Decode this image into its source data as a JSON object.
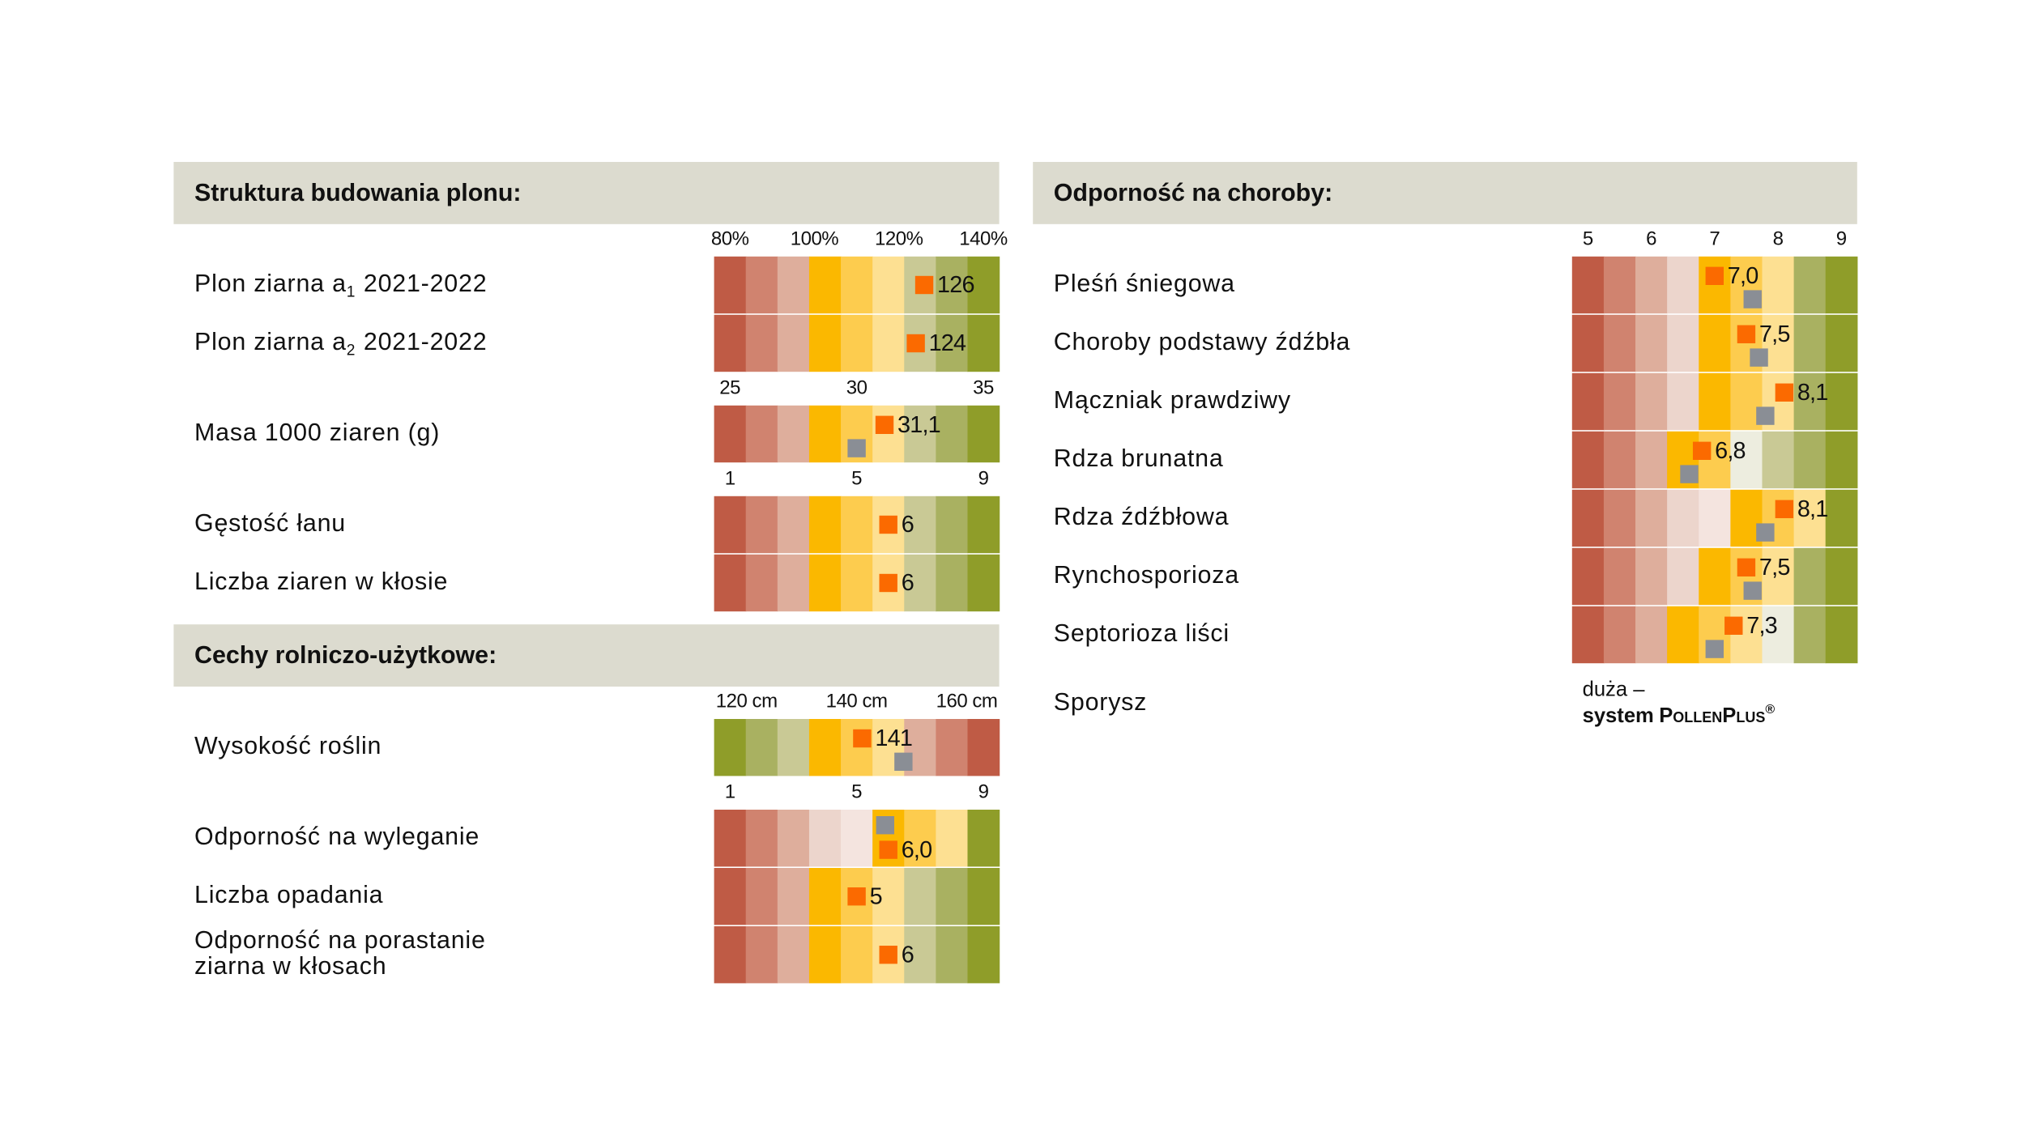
{
  "panels": [
    {
      "sections": [
        {
          "title": "Struktura budowania plonu:",
          "groups": [
            {
              "xlim": [
                76.25,
                143.75
              ],
              "ticks": [
                {
                  "value": 80,
                  "label": "80%"
                },
                {
                  "value": 100,
                  "label": "100%"
                },
                {
                  "value": 120,
                  "label": "120%"
                },
                {
                  "value": 140,
                  "label": "140%"
                }
              ],
              "rows": [
                {
                  "label": "Plon ziarna a",
                  "sub": "1",
                  "label_end": "2021-2022",
                  "value": 126,
                  "colors": [
                    "#bf5b45",
                    "#d0836f",
                    "#deae9c",
                    "#fbb800",
                    "#fdcc4e",
                    "#fde092",
                    "#c9c995",
                    "#a9b161",
                    "#8f9d29"
                  ]
                },
                {
                  "label": "Plon ziarna a",
                  "sub": "2",
                  "label_end": "2021-2022",
                  "value": 124,
                  "colors": [
                    "#bf5b45",
                    "#d0836f",
                    "#deae9c",
                    "#fbb800",
                    "#fdcc4e",
                    "#fde092",
                    "#c9c995",
                    "#a9b161",
                    "#8f9d29"
                  ]
                }
              ]
            },
            {
              "xlim": [
                24.375,
                35.625
              ],
              "ticks": [
                25,
                30,
                35
              ],
              "rows": [
                {
                  "label": "Masa 1000 ziaren (g)",
                  "value": 31.1,
                  "value_label": "31,1",
                  "compare": 30,
                  "colors": [
                    "#bf5b45",
                    "#d0836f",
                    "#deae9c",
                    "#fbb800",
                    "#fdcc4e",
                    "#fde092",
                    "#c9c995",
                    "#a9b161",
                    "#8f9d29"
                  ]
                }
              ]
            },
            {
              "xlim": [
                0.5,
                9.5
              ],
              "ticks": [
                1,
                5,
                9
              ],
              "rows": [
                {
                  "label": "Gęstość łanu",
                  "value": 6,
                  "colors": [
                    "#bf5b45",
                    "#d0836f",
                    "#deae9c",
                    "#fbb800",
                    "#fdcc4e",
                    "#fde092",
                    "#c9c995",
                    "#a9b161",
                    "#8f9d29"
                  ]
                },
                {
                  "label": "Liczba ziaren w kłosie",
                  "value": 6,
                  "colors": [
                    "#bf5b45",
                    "#d0836f",
                    "#deae9c",
                    "#fbb800",
                    "#fdcc4e",
                    "#fde092",
                    "#c9c995",
                    "#a9b161",
                    "#8f9d29"
                  ]
                }
              ]
            }
          ]
        },
        {
          "title": "Cechy rolniczo-użytkowe:",
          "groups": [
            {
              "xlim": [
                114.1,
                165.9
              ],
              "ticks": [
                {
                  "value": 120,
                  "label": "120 cm"
                },
                {
                  "value": 140,
                  "label": "140 cm"
                },
                {
                  "value": 160,
                  "label": "160 cm"
                }
              ],
              "rows": [
                {
                  "label": "Wysokość roślin",
                  "value": 141,
                  "compare": 148.5,
                  "colors": [
                    "#8f9d29",
                    "#a9b161",
                    "#c9c995",
                    "#fbb800",
                    "#fdcc4e",
                    "#fde092",
                    "#deae9c",
                    "#d0836f",
                    "#bf5b45"
                  ]
                }
              ]
            },
            {
              "xlim": [
                0.5,
                9.5
              ],
              "ticks": [
                1,
                5,
                9
              ],
              "rows": [
                {
                  "label": "Odporność na wyleganie",
                  "value": 6,
                  "value_label": "6,0",
                  "compare": 5.9,
                  "compare_above": true,
                  "colors": [
                    "#bf5b45",
                    "#d0836f",
                    "#deae9c",
                    "#ecd5cc",
                    "#f4e4df",
                    "#fbb800",
                    "#fdcc4e",
                    "#fde092",
                    "#8f9d29"
                  ]
                },
                {
                  "label": "Liczba opadania",
                  "value": 5,
                  "colors": [
                    "#bf5b45",
                    "#d0836f",
                    "#deae9c",
                    "#fbb800",
                    "#fdcc4e",
                    "#fde092",
                    "#c9c995",
                    "#a9b161",
                    "#8f9d29"
                  ]
                },
                {
                  "label": [
                    "Odporność na porastanie",
                    "ziarna w kłosach"
                  ],
                  "value": 6,
                  "colors": [
                    "#bf5b45",
                    "#d0836f",
                    "#deae9c",
                    "#fbb800",
                    "#fdcc4e",
                    "#fde092",
                    "#c9c995",
                    "#a9b161",
                    "#8f9d29"
                  ]
                }
              ]
            }
          ]
        }
      ]
    },
    {
      "sections": [
        {
          "title": "Odporność na choroby:",
          "groups": [
            {
              "xlim": [
                4.75,
                9.25
              ],
              "ticks": [
                5,
                6,
                7,
                8,
                9
              ],
              "rows": [
                {
                  "label": "Pleśń śniegowa",
                  "value": 7,
                  "value_label": "7,0",
                  "compare": 7.6,
                  "colors": [
                    "#bf5b45",
                    "#d0836f",
                    "#deae9c",
                    "#ecd5cc",
                    "#fbb800",
                    "#fdcc4e",
                    "#fde092",
                    "#a9b161",
                    "#8f9d29"
                  ]
                },
                {
                  "label": "Choroby podstawy źdźbła",
                  "value": 7.5,
                  "value_label": "7,5",
                  "compare": 7.7,
                  "colors": [
                    "#bf5b45",
                    "#d0836f",
                    "#deae9c",
                    "#ecd5cc",
                    "#fbb800",
                    "#fdcc4e",
                    "#fde092",
                    "#a9b161",
                    "#8f9d29"
                  ]
                },
                {
                  "label": "Mączniak prawdziwy",
                  "value": 8.1,
                  "value_label": "8,1",
                  "compare": 7.8,
                  "colors": [
                    "#bf5b45",
                    "#d0836f",
                    "#deae9c",
                    "#ecd5cc",
                    "#fbb800",
                    "#fdcc4e",
                    "#fde092",
                    "#a9b161",
                    "#8f9d29"
                  ]
                },
                {
                  "label": "Rdza brunatna",
                  "value": 6.8,
                  "value_label": "6,8",
                  "compare": 6.6,
                  "colors": [
                    "#bf5b45",
                    "#d0836f",
                    "#deae9c",
                    "#fbb800",
                    "#fdcc4e",
                    "#ededdf",
                    "#c9c995",
                    "#a9b161",
                    "#8f9d29"
                  ]
                },
                {
                  "label": "Rdza źdźbłowa",
                  "value": 8.1,
                  "value_label": "8,1",
                  "compare": 7.8,
                  "colors": [
                    "#bf5b45",
                    "#d0836f",
                    "#deae9c",
                    "#ecd5cc",
                    "#f4e4df",
                    "#fbb800",
                    "#fdcc4e",
                    "#fde092",
                    "#8f9d29"
                  ]
                },
                {
                  "label": "Rynchosporioza",
                  "value": 7.5,
                  "value_label": "7,5",
                  "compare": 7.6,
                  "colors": [
                    "#bf5b45",
                    "#d0836f",
                    "#deae9c",
                    "#ecd5cc",
                    "#fbb800",
                    "#fdcc4e",
                    "#fde092",
                    "#a9b161",
                    "#8f9d29"
                  ]
                },
                {
                  "label": "Septorioza liści",
                  "value": 7.3,
                  "value_label": "7,3",
                  "compare": 7,
                  "colors": [
                    "#bf5b45",
                    "#d0836f",
                    "#deae9c",
                    "#fbb800",
                    "#fdcc4e",
                    "#fde092",
                    "#ededdf",
                    "#a9b161",
                    "#8f9d29"
                  ]
                }
              ]
            }
          ]
        }
      ],
      "extra": {
        "label": "Sporysz",
        "note_line1": "duża –",
        "note_system": "system",
        "note_brand": "PollenPlus",
        "note_mark": "®"
      }
    }
  ],
  "marker_color": "#fb6a00",
  "compare_color": "#8a8e95",
  "header_color": "#dcdbcf"
}
